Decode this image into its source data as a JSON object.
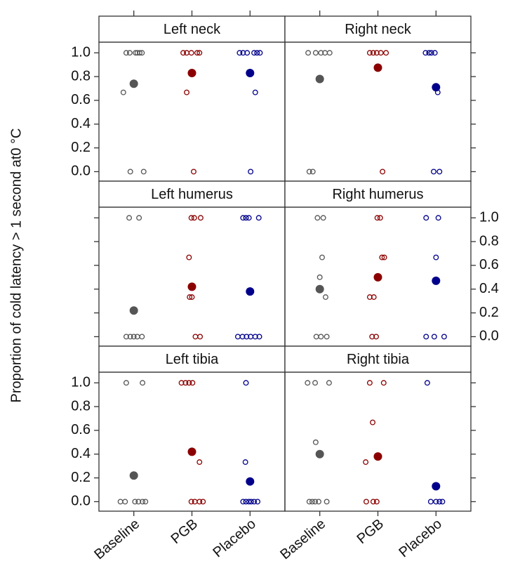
{
  "chart_data": {
    "type": "scatter",
    "ylabel": "Proportion of cold latency > 1 second at0 °C",
    "categories": [
      "Baseline",
      "PGB",
      "Placebo"
    ],
    "colors": [
      "#555555",
      "#8b0000",
      "#00008b"
    ],
    "xlim": [
      0.4,
      3.6
    ],
    "ylim": [
      -0.08,
      1.09
    ],
    "yticks": [
      {
        "value": 0,
        "label": "0.0"
      },
      0.2,
      0.4,
      0.6,
      0.8,
      {
        "value": 1,
        "label": "1.0"
      }
    ],
    "panels": [
      {
        "title": "Left neck",
        "groups": [
          {
            "x": [
              0.87,
              0.93,
              1.03,
              1.06,
              1.1,
              1.14,
              0.82,
              0.94,
              1.17
            ],
            "y": [
              1,
              1,
              1,
              1,
              1,
              1,
              0.667,
              0,
              0
            ],
            "mean": 0.74
          },
          {
            "x": [
              1.85,
              1.91,
              1.99,
              2.09,
              2.13,
              1.91,
              2.03
            ],
            "y": [
              1,
              1,
              1,
              1,
              1,
              0.667,
              0
            ],
            "mean": 0.83
          },
          {
            "x": [
              2.82,
              2.88,
              2.95,
              3.07,
              3.12,
              3.17,
              3.09,
              3.01
            ],
            "y": [
              1,
              1,
              1,
              1,
              1,
              1,
              0.667,
              0
            ],
            "mean": 0.83
          }
        ]
      },
      {
        "title": "Right neck",
        "groups": [
          {
            "x": [
              0.8,
              0.93,
              1.02,
              1.09,
              1.17,
              0.82,
              0.88
            ],
            "y": [
              1,
              1,
              1,
              1,
              1,
              0,
              0
            ],
            "mean": 0.78
          },
          {
            "x": [
              1.86,
              1.92,
              1.98,
              2.05,
              2.14,
              2.08
            ],
            "y": [
              1,
              1,
              1,
              1,
              1,
              0
            ],
            "mean": 0.875
          },
          {
            "x": [
              2.82,
              2.88,
              2.92,
              2.98,
              3.03,
              2.96,
              3.06
            ],
            "y": [
              1,
              1,
              1,
              1,
              0.667,
              0,
              0
            ],
            "mean": 0.71
          }
        ]
      },
      {
        "title": "Left humerus",
        "groups": [
          {
            "x": [
              0.92,
              1.09,
              0.87,
              0.94,
              1.0,
              1.06,
              1.14
            ],
            "y": [
              1,
              1,
              0,
              0,
              0,
              0,
              0
            ],
            "mean": 0.22
          },
          {
            "x": [
              1.99,
              2.04,
              2.15,
              1.95,
              1.96,
              2.0,
              2.06,
              2.14
            ],
            "y": [
              1,
              1,
              1,
              0.667,
              0.333,
              0.333,
              0,
              0
            ],
            "mean": 0.42
          },
          {
            "x": [
              2.88,
              2.93,
              2.98,
              3.15,
              2.79,
              2.87,
              2.94,
              3.01,
              3.09,
              3.16
            ],
            "y": [
              1,
              1,
              1,
              1,
              0,
              0,
              0,
              0,
              0,
              0
            ],
            "mean": 0.38
          }
        ]
      },
      {
        "title": "Right humerus",
        "groups": [
          {
            "x": [
              0.96,
              1.06,
              1.04,
              1.0,
              1.1,
              0.94,
              1.02,
              1.12
            ],
            "y": [
              1,
              1,
              0.667,
              0.5,
              0.333,
              0,
              0,
              0
            ],
            "mean": 0.4
          },
          {
            "x": [
              1.99,
              2.04,
              2.07,
              2.11,
              1.86,
              1.93,
              1.9,
              1.97
            ],
            "y": [
              1,
              1,
              0.667,
              0.667,
              0.333,
              0.333,
              0,
              0
            ],
            "mean": 0.5
          },
          {
            "x": [
              2.83,
              3.04,
              3.0,
              2.83,
              2.97,
              3.14
            ],
            "y": [
              1,
              1,
              0.667,
              0,
              0,
              0
            ],
            "mean": 0.47
          }
        ]
      },
      {
        "title": "Left tibia",
        "groups": [
          {
            "x": [
              0.87,
              1.15,
              0.77,
              0.85,
              1.02,
              1.08,
              1.15,
              1.2
            ],
            "y": [
              1,
              1,
              0,
              0,
              0,
              0,
              0,
              0
            ],
            "mean": 0.22
          },
          {
            "x": [
              1.82,
              1.89,
              1.95,
              2.01,
              2.13,
              1.99,
              2.05,
              2.13,
              2.19
            ],
            "y": [
              1,
              1,
              1,
              1,
              0.333,
              0,
              0,
              0,
              0
            ],
            "mean": 0.42
          },
          {
            "x": [
              2.93,
              2.92,
              2.88,
              2.93,
              2.98,
              3.02,
              3.07,
              3.13
            ],
            "y": [
              1,
              0.333,
              0,
              0,
              0,
              0,
              0,
              0
            ],
            "mean": 0.17
          }
        ]
      },
      {
        "title": "Right tibia",
        "groups": [
          {
            "x": [
              0.79,
              0.92,
              1.16,
              0.93,
              0.82,
              0.87,
              0.92,
              0.98,
              1.12
            ],
            "y": [
              1,
              1,
              1,
              0.5,
              0,
              0,
              0,
              0,
              0
            ],
            "mean": 0.4
          },
          {
            "x": [
              1.86,
              2.1,
              1.91,
              1.79,
              1.8,
              1.92,
              1.98
            ],
            "y": [
              1,
              1,
              0.667,
              0.333,
              0,
              0,
              0
            ],
            "mean": 0.38
          },
          {
            "x": [
              2.85,
              2.91,
              3.0,
              3.06,
              3.11
            ],
            "y": [
              1,
              0,
              0,
              0,
              0
            ],
            "mean": 0.13
          }
        ]
      }
    ]
  }
}
